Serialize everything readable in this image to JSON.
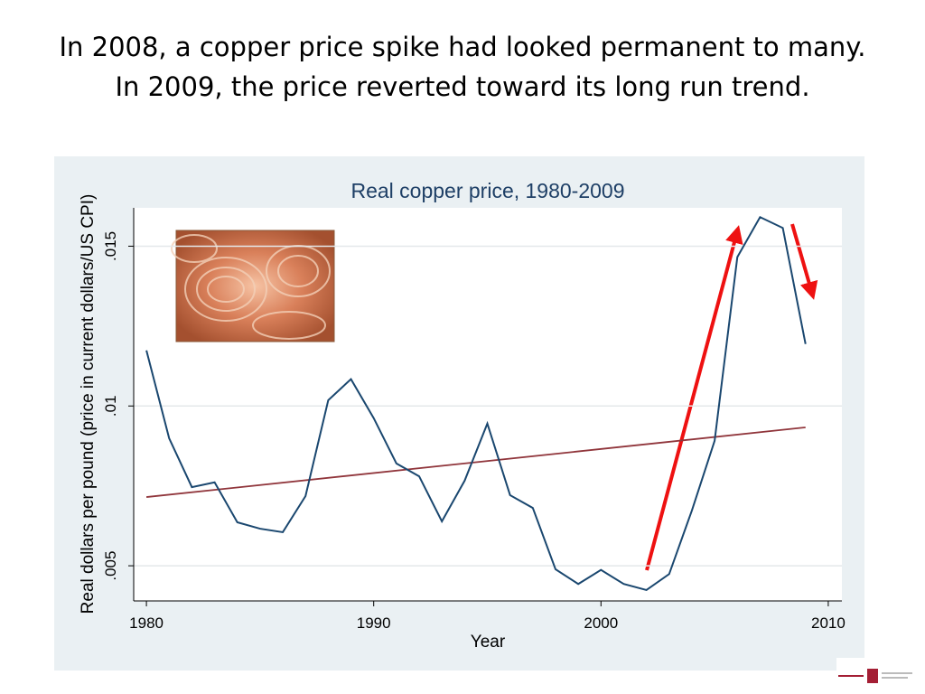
{
  "slide": {
    "title": [
      "In 2008, a copper price spike had looked permanent to many.",
      "In 2009, the price reverted toward its long run trend."
    ]
  },
  "chart_data": {
    "type": "line",
    "title": "Real copper price, 1980-2009",
    "x_label": "Year",
    "y_label": "Real dollars per pound (price in current dollars/US CPI)",
    "x": [
      1980,
      1981,
      1982,
      1983,
      1984,
      1985,
      1986,
      1987,
      1988,
      1989,
      1990,
      1991,
      1992,
      1993,
      1994,
      1995,
      1996,
      1997,
      1998,
      1999,
      2000,
      2001,
      2002,
      2003,
      2004,
      2005,
      2006,
      2007,
      2008,
      2009
    ],
    "series": [
      {
        "color": "#1a476f",
        "values": [
          0.01174,
          0.00899,
          0.00746,
          0.00761,
          0.00636,
          0.00616,
          0.00605,
          0.00718,
          0.01018,
          0.01084,
          0.00962,
          0.0082,
          0.0078,
          0.00639,
          0.00766,
          0.00945,
          0.00721,
          0.00681,
          0.00489,
          0.00443,
          0.00487,
          0.00443,
          0.00424,
          0.00474,
          0.00673,
          0.00891,
          0.01466,
          0.01591,
          0.01557,
          0.01194
        ]
      }
    ],
    "trend": {
      "color": "#90353b",
      "x": [
        1980,
        2009
      ],
      "values": [
        0.00715,
        0.00933
      ]
    },
    "xlim": [
      1979.44,
      2010.6
    ],
    "ylim": [
      0.0039,
      0.0162
    ],
    "xticks": [
      1980,
      1990,
      2000,
      2010
    ],
    "yticks": [
      {
        "value": 0.005,
        "label": ".005"
      },
      {
        "value": 0.01,
        "label": ".01"
      },
      {
        "value": 0.015,
        "label": ".015"
      }
    ],
    "grid": true
  }
}
